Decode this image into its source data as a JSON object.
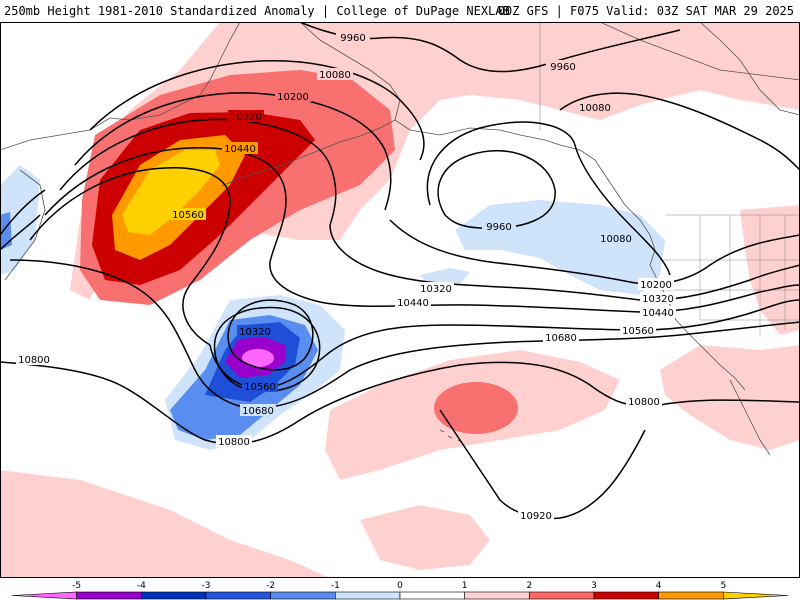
{
  "header": {
    "title_left": "250mb Height 1981-2010 Standardized Anomaly | College of DuPage NEXLAB",
    "title_right": "00Z GFS | F075 Valid: 03Z SAT MAR 29 2025"
  },
  "colorbar": {
    "tick_labels": [
      "-5",
      "-4",
      "-3",
      "-2",
      "-1",
      "0",
      "1",
      "2",
      "3",
      "4",
      "5"
    ],
    "colors": [
      "#ff66ff",
      "#9900cc",
      "#0033bb",
      "#2255dd",
      "#5a8df0",
      "#cfe3fb",
      "#ffffff",
      "#ffd0d0",
      "#ff6666",
      "#cc0000",
      "#ff9900",
      "#ffd000"
    ]
  },
  "map": {
    "contour_labels": [
      "9960",
      "10080",
      "10200",
      "10320",
      "10440",
      "10560",
      "10680",
      "10800",
      "10920"
    ],
    "anomaly_colors": {
      "pos1": "#ffd0d0",
      "pos2": "#f87070",
      "pos3": "#cc0000",
      "pos4": "#ff9900",
      "pos5": "#ffd000",
      "neg1": "#cfe3fb",
      "neg2": "#5a8df0",
      "neg3": "#1f4fd8",
      "neg4": "#9900cc",
      "neg5": "#ff66ff"
    }
  }
}
